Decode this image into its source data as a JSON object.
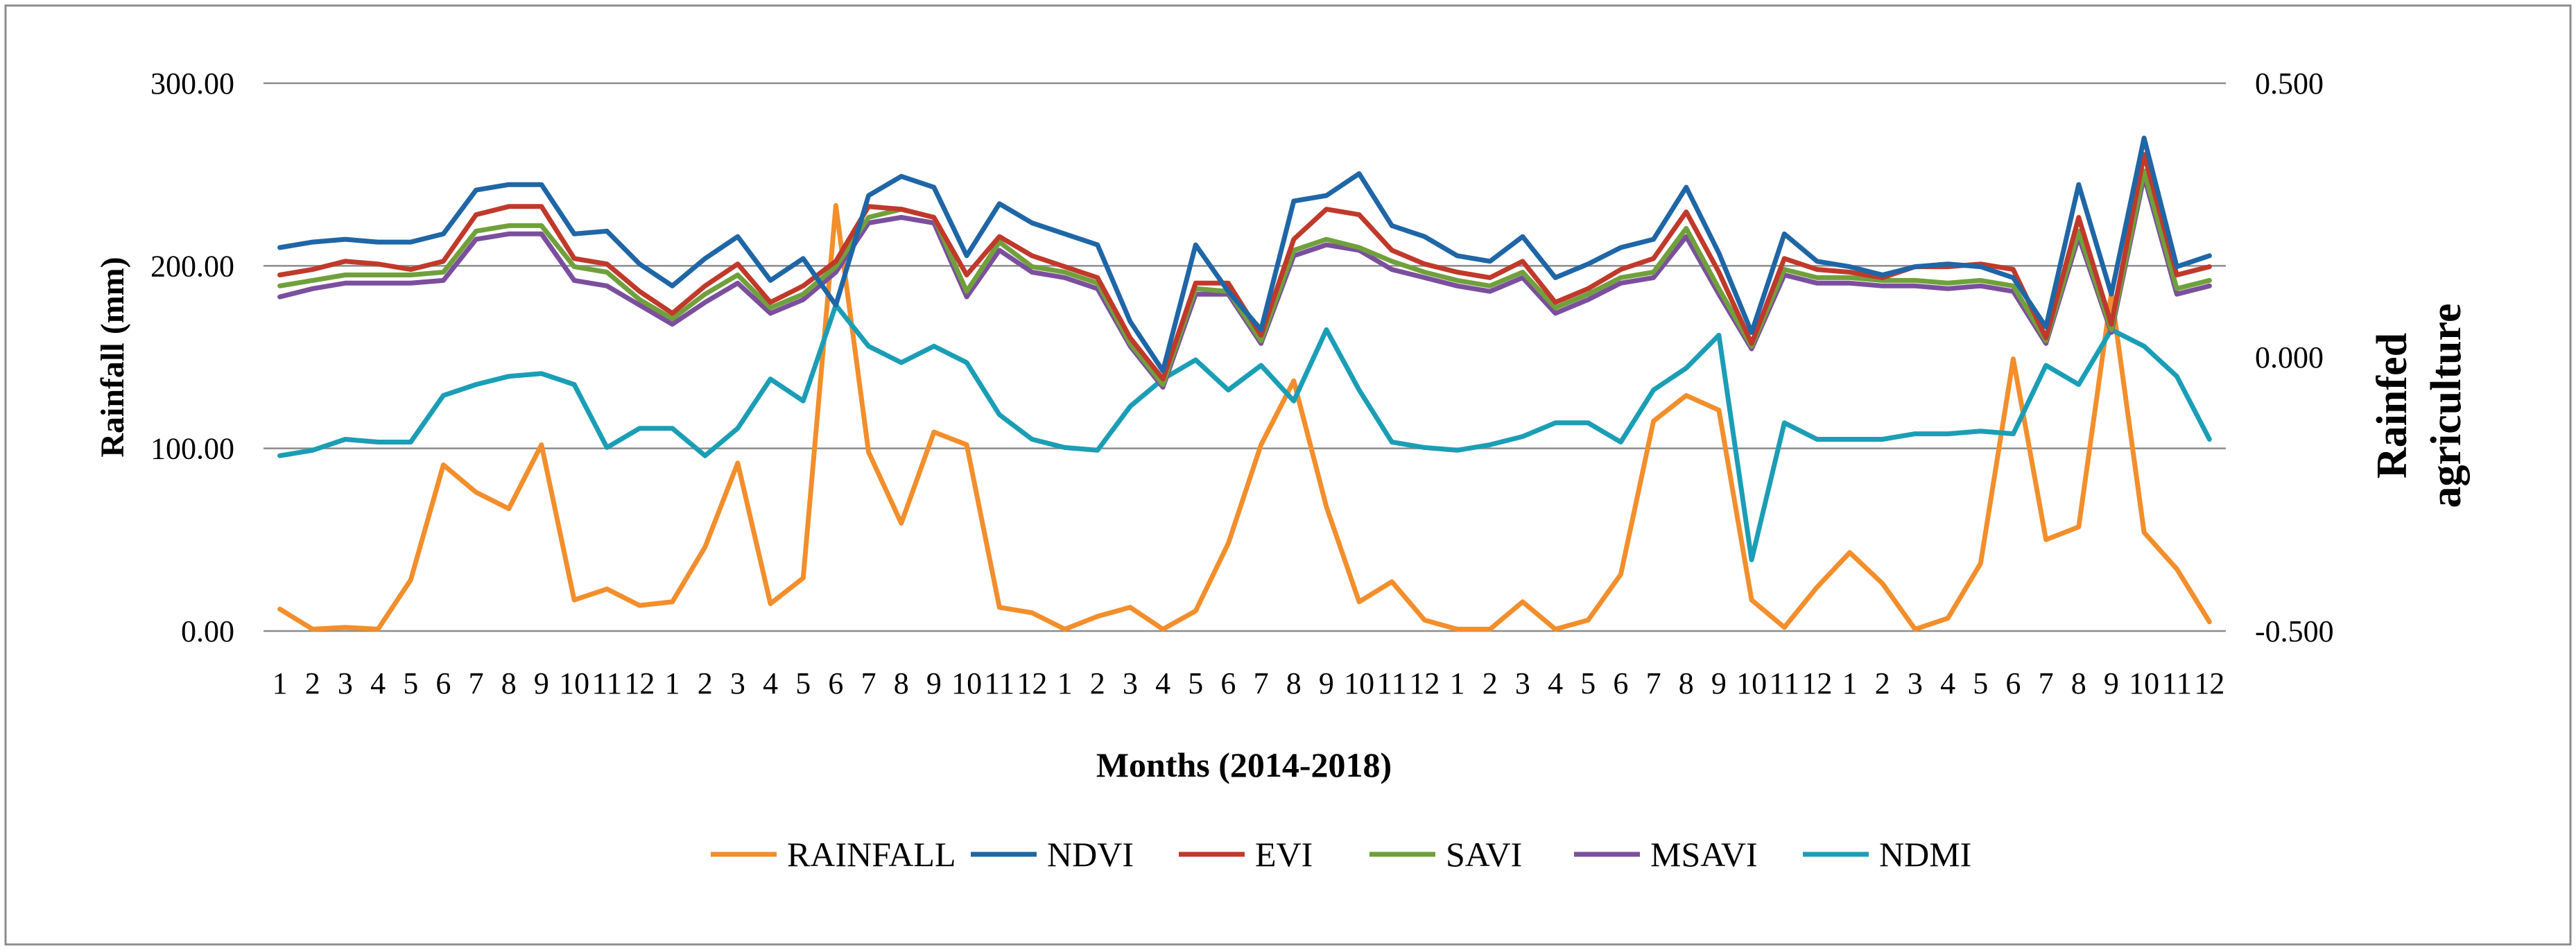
{
  "chart_data": {
    "type": "line",
    "title": "",
    "xlabel": "Months (2014-2018)",
    "ylabel_left": "Rainfall (mm)",
    "ylabel_right": [
      "Rainfed",
      "agriculture"
    ],
    "left_axis": {
      "min": 0,
      "max": 300,
      "ticks": [
        "0.00",
        "100.00",
        "200.00",
        "300.00"
      ],
      "tick_values": [
        0,
        100,
        200,
        300
      ]
    },
    "right_axis": {
      "min": -0.5,
      "max": 0.5,
      "ticks": [
        "-0.500",
        "0.000",
        "0.500"
      ],
      "tick_values": [
        -0.5,
        0,
        0.5
      ]
    },
    "categories": [
      "1",
      "2",
      "3",
      "4",
      "5",
      "6",
      "7",
      "8",
      "9",
      "10",
      "11",
      "12",
      "1",
      "2",
      "3",
      "4",
      "5",
      "6",
      "7",
      "8",
      "9",
      "10",
      "11",
      "12",
      "1",
      "2",
      "3",
      "4",
      "5",
      "6",
      "7",
      "8",
      "9",
      "10",
      "11",
      "12",
      "1",
      "2",
      "3",
      "4",
      "5",
      "6",
      "7",
      "8",
      "9",
      "10",
      "11",
      "12",
      "1",
      "2",
      "3",
      "4",
      "5",
      "6",
      "7",
      "8",
      "9",
      "10",
      "11",
      "12"
    ],
    "gridlines": true,
    "legend_position": "bottom",
    "series": [
      {
        "name": "RAINFALL",
        "color": "#F28E2C",
        "axis": "left",
        "values": [
          12,
          1,
          2,
          1,
          28,
          91,
          76,
          67,
          102,
          17,
          23,
          14,
          16,
          46,
          92,
          15,
          29,
          233,
          98,
          59,
          109,
          102,
          13,
          10,
          1,
          8,
          13,
          1,
          11,
          48,
          102,
          137,
          68,
          16,
          27,
          6,
          1,
          1,
          16,
          1,
          6,
          31,
          115,
          129,
          121,
          17,
          2,
          24,
          43,
          26,
          1,
          7,
          37,
          149,
          50,
          57,
          185,
          54,
          34,
          5
        ]
      },
      {
        "name": "NDVI",
        "color": "#1F66A6",
        "axis": "right",
        "values": [
          0.2,
          0.21,
          0.215,
          0.21,
          0.21,
          0.225,
          0.305,
          0.315,
          0.315,
          0.225,
          0.23,
          0.17,
          0.13,
          0.18,
          0.22,
          0.14,
          0.18,
          0.095,
          0.295,
          0.33,
          0.31,
          0.185,
          0.28,
          0.245,
          0.225,
          0.205,
          0.065,
          -0.025,
          0.205,
          0.12,
          0.05,
          0.285,
          0.295,
          0.335,
          0.24,
          0.22,
          0.185,
          0.175,
          0.22,
          0.145,
          0.17,
          0.2,
          0.215,
          0.31,
          0.19,
          0.045,
          0.225,
          0.175,
          0.165,
          0.15,
          0.165,
          0.17,
          0.165,
          0.145,
          0.055,
          0.315,
          0.115,
          0.4,
          0.165,
          0.185
        ]
      },
      {
        "name": "EVI",
        "color": "#C0392B",
        "axis": "right",
        "values": [
          0.15,
          0.16,
          0.175,
          0.17,
          0.16,
          0.175,
          0.26,
          0.275,
          0.275,
          0.18,
          0.17,
          0.12,
          0.08,
          0.13,
          0.17,
          0.1,
          0.13,
          0.175,
          0.275,
          0.27,
          0.255,
          0.15,
          0.22,
          0.185,
          0.165,
          0.145,
          0.035,
          -0.04,
          0.135,
          0.135,
          0.04,
          0.215,
          0.27,
          0.26,
          0.195,
          0.17,
          0.155,
          0.145,
          0.175,
          0.1,
          0.125,
          0.16,
          0.18,
          0.265,
          0.155,
          0.025,
          0.18,
          0.16,
          0.155,
          0.145,
          0.165,
          0.165,
          0.17,
          0.16,
          0.035,
          0.255,
          0.06,
          0.37,
          0.15,
          0.165
        ]
      },
      {
        "name": "SAVI",
        "color": "#70A03C",
        "axis": "right",
        "values": [
          0.13,
          0.14,
          0.15,
          0.15,
          0.15,
          0.155,
          0.23,
          0.24,
          0.24,
          0.165,
          0.155,
          0.105,
          0.07,
          0.115,
          0.15,
          0.09,
          0.115,
          0.165,
          0.255,
          0.27,
          0.255,
          0.12,
          0.21,
          0.165,
          0.155,
          0.135,
          0.025,
          -0.05,
          0.125,
          0.12,
          0.03,
          0.195,
          0.215,
          0.2,
          0.175,
          0.155,
          0.14,
          0.13,
          0.155,
          0.09,
          0.115,
          0.145,
          0.155,
          0.235,
          0.125,
          0.02,
          0.16,
          0.145,
          0.145,
          0.14,
          0.14,
          0.135,
          0.14,
          0.13,
          0.03,
          0.23,
          0.05,
          0.34,
          0.125,
          0.14
        ]
      },
      {
        "name": "MSAVI",
        "color": "#7B4F9D",
        "axis": "right",
        "values": [
          0.11,
          0.125,
          0.135,
          0.135,
          0.135,
          0.14,
          0.215,
          0.225,
          0.225,
          0.14,
          0.13,
          0.095,
          0.06,
          0.1,
          0.135,
          0.08,
          0.105,
          0.155,
          0.245,
          0.255,
          0.245,
          0.11,
          0.195,
          0.155,
          0.145,
          0.125,
          0.02,
          -0.055,
          0.115,
          0.115,
          0.025,
          0.185,
          0.205,
          0.195,
          0.16,
          0.145,
          0.13,
          0.12,
          0.145,
          0.08,
          0.105,
          0.135,
          0.145,
          0.22,
          0.115,
          0.015,
          0.15,
          0.135,
          0.135,
          0.13,
          0.13,
          0.125,
          0.13,
          0.12,
          0.025,
          0.22,
          0.045,
          0.33,
          0.115,
          0.13
        ]
      },
      {
        "name": "NDMI",
        "color": "#1B9EB5",
        "axis": "right",
        "values": [
          -0.18,
          -0.17,
          -0.15,
          -0.155,
          -0.155,
          -0.07,
          -0.05,
          -0.035,
          -0.03,
          -0.05,
          -0.165,
          -0.13,
          -0.13,
          -0.18,
          -0.13,
          -0.04,
          -0.08,
          0.095,
          0.02,
          -0.01,
          0.02,
          -0.01,
          -0.105,
          -0.15,
          -0.165,
          -0.17,
          -0.09,
          -0.04,
          -0.005,
          -0.06,
          -0.015,
          -0.08,
          0.05,
          -0.06,
          -0.155,
          -0.165,
          -0.17,
          -0.16,
          -0.145,
          -0.12,
          -0.12,
          -0.155,
          -0.06,
          -0.02,
          0.04,
          -0.37,
          -0.12,
          -0.15,
          -0.15,
          -0.15,
          -0.14,
          -0.14,
          -0.135,
          -0.14,
          -0.015,
          -0.05,
          0.05,
          0.02,
          -0.035,
          -0.15
        ]
      }
    ]
  }
}
